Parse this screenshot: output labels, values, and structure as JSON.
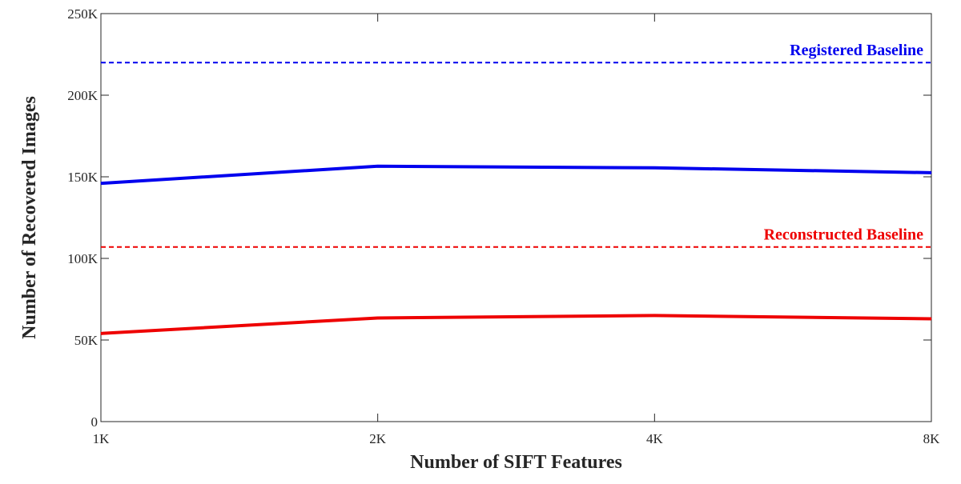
{
  "chart_data": {
    "type": "line",
    "title": "",
    "xlabel": "Number of SIFT Features",
    "ylabel": "Number of Recovered Images",
    "x_categories": [
      "1K",
      "2K",
      "4K",
      "8K"
    ],
    "y_ticks": [
      {
        "value": 0,
        "label": "0"
      },
      {
        "value": 50000,
        "label": "50K"
      },
      {
        "value": 100000,
        "label": "100K"
      },
      {
        "value": 150000,
        "label": "150K"
      },
      {
        "value": 200000,
        "label": "200K"
      },
      {
        "value": 250000,
        "label": "250K"
      }
    ],
    "ylim": [
      0,
      250000
    ],
    "grid": false,
    "series": [
      {
        "values": [
          146000,
          156500,
          155500,
          152500
        ],
        "color": "#0000ee",
        "style": "solid"
      },
      {
        "values": [
          54000,
          63500,
          65000,
          63000
        ],
        "color": "#ee0000",
        "style": "solid"
      }
    ],
    "baselines": [
      {
        "label": "Registered Baseline",
        "value": 220000,
        "color": "#0000ee",
        "style": "dashed"
      },
      {
        "label": "Reconstructed Baseline",
        "value": 107000,
        "color": "#ee0000",
        "style": "dashed"
      }
    ]
  }
}
